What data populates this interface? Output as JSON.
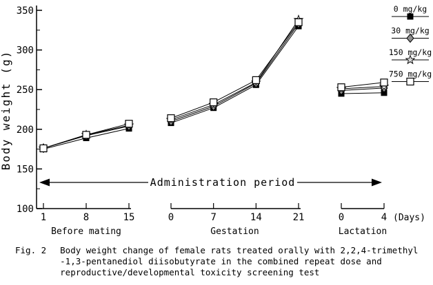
{
  "figure": {
    "caption_prefix": "Fig. 2",
    "caption_lines": [
      "Body weight change of female rats treated orally with 2,2,4-trimethyl",
      "-1,3-pentanediol diisobutyrate in the combined repeat dose and",
      "reproductive/developmental toxicity screening test"
    ]
  },
  "chart_data": {
    "type": "line",
    "title": "",
    "ylabel": "Body weight (g)",
    "ylim": [
      100,
      350
    ],
    "y_major_ticks": [
      100,
      150,
      200,
      250,
      300,
      350
    ],
    "y_minor_step": 25,
    "x_units_label": "(Days)",
    "annotation": "Administration period",
    "grid": false,
    "legend_position": "top-right",
    "background_color": "#ffffff",
    "line_color": "#000000",
    "segments": [
      {
        "label": "Before mating",
        "days": [
          1,
          8,
          15
        ]
      },
      {
        "label": "Gestation",
        "days": [
          0,
          7,
          14,
          21
        ]
      },
      {
        "label": "Lactation",
        "days": [
          0,
          4
        ]
      }
    ],
    "series": [
      {
        "name": "0 mg/kg",
        "marker": "filled-square",
        "values_by_segment": [
          [
            175,
            189,
            201
          ],
          [
            208,
            227,
            256,
            330
          ],
          [
            245,
            246
          ]
        ]
      },
      {
        "name": "30 mg/kg",
        "marker": "gray-diamond",
        "values_by_segment": [
          [
            176,
            192,
            204
          ],
          [
            210,
            229,
            258,
            333
          ],
          [
            249,
            252
          ]
        ]
      },
      {
        "name": "150 mg/kg",
        "marker": "gray-star",
        "values_by_segment": [
          [
            176,
            193,
            205
          ],
          [
            212,
            231,
            259,
            338
          ],
          [
            251,
            254
          ]
        ]
      },
      {
        "name": "750 mg/kg",
        "marker": "open-square",
        "values_by_segment": [
          [
            176,
            193,
            207
          ],
          [
            214,
            234,
            262,
            335
          ],
          [
            253,
            259
          ]
        ]
      }
    ]
  }
}
